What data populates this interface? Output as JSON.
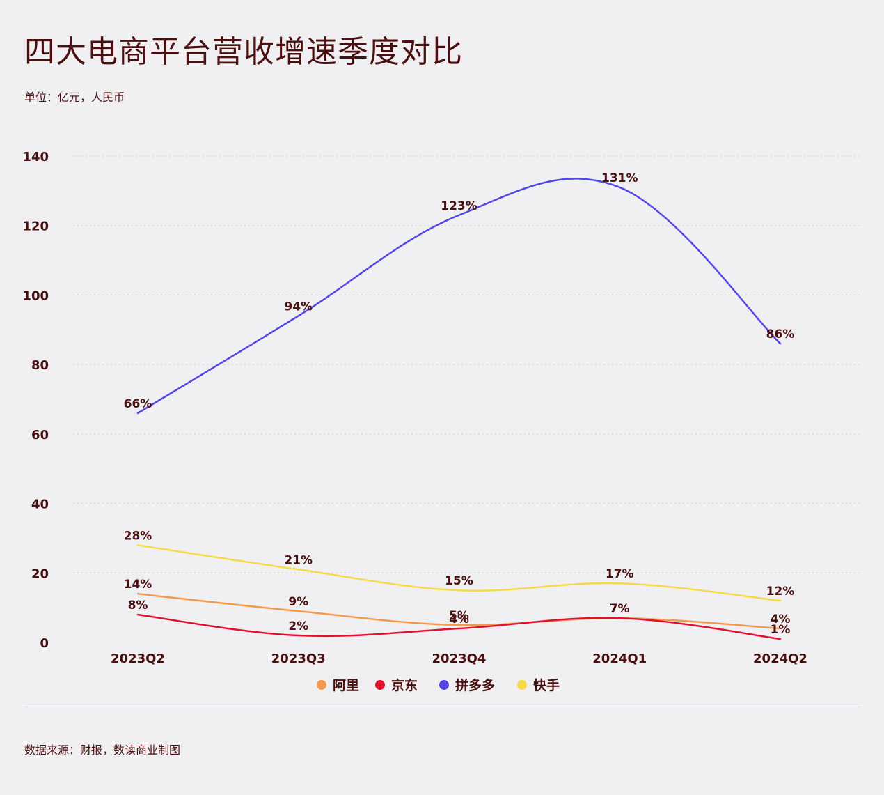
{
  "header": {
    "title": "四大电商平台营收增速季度对比",
    "unit": "单位：亿元，人民币"
  },
  "footer": {
    "source": "数据来源：财报，数读商业制图"
  },
  "chart_data": {
    "type": "line",
    "title": "四大电商平台营收增速季度对比",
    "xlabel": "",
    "ylabel": "",
    "categories": [
      "2023Q2",
      "2023Q3",
      "2023Q4",
      "2024Q1",
      "2024Q2"
    ],
    "ylim": [
      0,
      140
    ],
    "yticks": [
      0,
      20,
      40,
      60,
      80,
      100,
      120,
      140
    ],
    "grid": true,
    "legend_position": "bottom-center",
    "series": [
      {
        "name": "阿里",
        "color": "#f39a4d",
        "values": [
          14,
          9,
          5,
          7,
          4
        ],
        "labels": [
          "14%",
          "9%",
          "5%",
          "7%",
          "4%"
        ]
      },
      {
        "name": "京东",
        "color": "#e0122e",
        "values": [
          8,
          2,
          4,
          7,
          1
        ],
        "labels": [
          "8%",
          "2%",
          "4%",
          "7%",
          "1%"
        ]
      },
      {
        "name": "拼多多",
        "color": "#5247e6",
        "values": [
          66,
          94,
          123,
          131,
          86
        ],
        "labels": [
          "66%",
          "94%",
          "123%",
          "131%",
          "86%"
        ]
      },
      {
        "name": "快手",
        "color": "#f7da4a",
        "values": [
          28,
          21,
          15,
          17,
          12
        ],
        "labels": [
          "28%",
          "21%",
          "15%",
          "17%",
          "12%"
        ]
      }
    ]
  }
}
